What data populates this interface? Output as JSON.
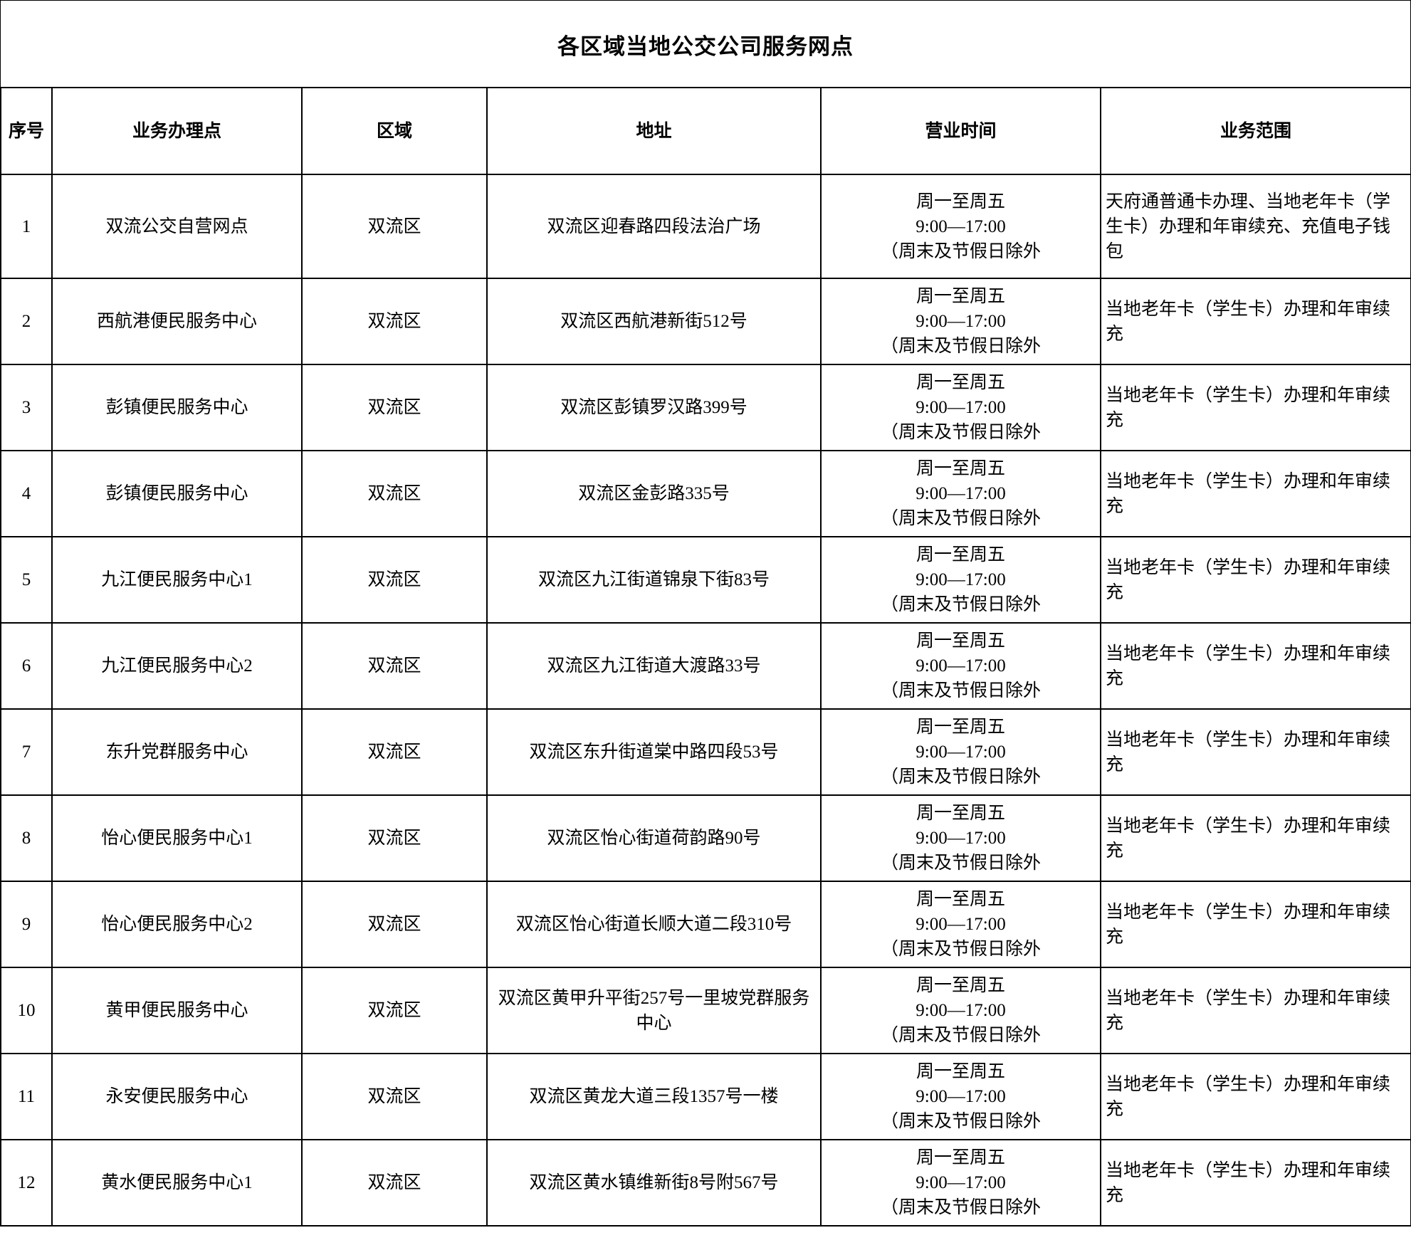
{
  "title": "各区域当地公交公司服务网点",
  "columns": [
    "序号",
    "业务办理点",
    "区域",
    "地址",
    "营业时间",
    "业务范围"
  ],
  "rows": [
    {
      "no": "1",
      "name": "双流公交自营网点",
      "district": "双流区",
      "address": "双流区迎春路四段法治广场",
      "hours": [
        "周一至周五",
        "9:00—17:00",
        "（周末及节假日除外"
      ],
      "scope": "天府通普通卡办理、当地老年卡（学生卡）办理和年审续充、充值电子钱包"
    },
    {
      "no": "2",
      "name": "西航港便民服务中心",
      "district": "双流区",
      "address": "双流区西航港新街512号",
      "hours": [
        "周一至周五",
        "9:00—17:00",
        "（周末及节假日除外"
      ],
      "scope": "当地老年卡（学生卡）办理和年审续充"
    },
    {
      "no": "3",
      "name": "彭镇便民服务中心",
      "district": "双流区",
      "address": "双流区彭镇罗汉路399号",
      "hours": [
        "周一至周五",
        "9:00—17:00",
        "（周末及节假日除外"
      ],
      "scope": "当地老年卡（学生卡）办理和年审续充"
    },
    {
      "no": "4",
      "name": "彭镇便民服务中心",
      "district": "双流区",
      "address": "双流区金彭路335号",
      "hours": [
        "周一至周五",
        "9:00—17:00",
        "（周末及节假日除外"
      ],
      "scope": "当地老年卡（学生卡）办理和年审续充"
    },
    {
      "no": "5",
      "name": "九江便民服务中心1",
      "district": "双流区",
      "address": "双流区九江街道锦泉下街83号",
      "hours": [
        "周一至周五",
        "9:00—17:00",
        "（周末及节假日除外"
      ],
      "scope": "当地老年卡（学生卡）办理和年审续充"
    },
    {
      "no": "6",
      "name": "九江便民服务中心2",
      "district": "双流区",
      "address": "双流区九江街道大渡路33号",
      "hours": [
        "周一至周五",
        "9:00—17:00",
        "（周末及节假日除外"
      ],
      "scope": "当地老年卡（学生卡）办理和年审续充"
    },
    {
      "no": "7",
      "name": "东升党群服务中心",
      "district": "双流区",
      "address": "双流区东升街道棠中路四段53号",
      "hours": [
        "周一至周五",
        "9:00—17:00",
        "（周末及节假日除外"
      ],
      "scope": "当地老年卡（学生卡）办理和年审续充"
    },
    {
      "no": "8",
      "name": "怡心便民服务中心1",
      "district": "双流区",
      "address": "双流区怡心街道荷韵路90号",
      "hours": [
        "周一至周五",
        "9:00—17:00",
        "（周末及节假日除外"
      ],
      "scope": "当地老年卡（学生卡）办理和年审续充"
    },
    {
      "no": "9",
      "name": "怡心便民服务中心2",
      "district": "双流区",
      "address": "双流区怡心街道长顺大道二段310号",
      "hours": [
        "周一至周五",
        "9:00—17:00",
        "（周末及节假日除外"
      ],
      "scope": "当地老年卡（学生卡）办理和年审续充"
    },
    {
      "no": "10",
      "name": "黄甲便民服务中心",
      "district": "双流区",
      "address": "双流区黄甲升平街257号一里坡党群服务中心",
      "hours": [
        "周一至周五",
        "9:00—17:00",
        "（周末及节假日除外"
      ],
      "scope": "当地老年卡（学生卡）办理和年审续充"
    },
    {
      "no": "11",
      "name": "永安便民服务中心",
      "district": "双流区",
      "address": "双流区黄龙大道三段1357号一楼",
      "hours": [
        "周一至周五",
        "9:00—17:00",
        "（周末及节假日除外"
      ],
      "scope": "当地老年卡（学生卡）办理和年审续充"
    },
    {
      "no": "12",
      "name": "黄水便民服务中心1",
      "district": "双流区",
      "address": "双流区黄水镇维新街8号附567号",
      "hours": [
        "周一至周五",
        "9:00—17:00",
        "（周末及节假日除外"
      ],
      "scope": "当地老年卡（学生卡）办理和年审续充"
    }
  ]
}
